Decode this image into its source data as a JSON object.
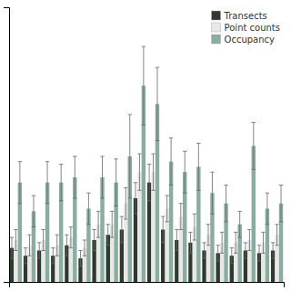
{
  "chart_data": {
    "type": "bar",
    "categories": [
      null,
      null,
      null,
      null,
      null,
      null,
      null,
      null,
      null,
      null,
      null,
      null,
      null,
      null,
      null,
      null,
      null,
      null,
      null,
      null
    ],
    "series": [
      {
        "name": "Transects",
        "color": "#2d3a2d",
        "values": [
          0.13,
          0.1,
          0.12,
          0.1,
          0.14,
          0.09,
          0.16,
          0.18,
          0.2,
          0.32,
          0.38,
          0.2,
          0.16,
          0.15,
          0.12,
          0.11,
          0.1,
          0.12,
          0.11,
          0.12
        ],
        "errors": [
          0.04,
          0.03,
          0.03,
          0.03,
          0.04,
          0.03,
          0.04,
          0.04,
          0.05,
          0.06,
          0.07,
          0.05,
          0.04,
          0.04,
          0.03,
          0.03,
          0.03,
          0.03,
          0.03,
          0.03
        ]
      },
      {
        "name": "Point counts",
        "color": "#e8e8e8",
        "values": [
          0.16,
          0.14,
          0.16,
          0.14,
          0.17,
          0.13,
          0.22,
          0.22,
          0.3,
          0.42,
          0.42,
          0.28,
          0.25,
          0.21,
          0.18,
          0.15,
          0.15,
          0.16,
          0.15,
          0.18
        ],
        "errors": [
          0.04,
          0.04,
          0.04,
          0.04,
          0.04,
          0.03,
          0.05,
          0.05,
          0.06,
          0.07,
          0.07,
          0.05,
          0.05,
          0.05,
          0.04,
          0.04,
          0.04,
          0.04,
          0.04,
          0.04
        ]
      },
      {
        "name": "Occupancy",
        "color": "#8aada0",
        "values": [
          0.38,
          0.27,
          0.38,
          0.38,
          0.4,
          0.28,
          0.4,
          0.38,
          0.48,
          0.75,
          0.68,
          0.46,
          0.42,
          0.44,
          0.34,
          0.3,
          0.22,
          0.52,
          0.28,
          0.3
        ],
        "errors": [
          0.08,
          0.06,
          0.08,
          0.07,
          0.08,
          0.06,
          0.08,
          0.09,
          0.16,
          0.15,
          0.14,
          0.09,
          0.08,
          0.09,
          0.08,
          0.07,
          0.05,
          0.09,
          0.06,
          0.07
        ]
      }
    ],
    "ylim": [
      0,
      1.05
    ],
    "yticks": [],
    "tick_labels": false,
    "legend": "upper right"
  }
}
